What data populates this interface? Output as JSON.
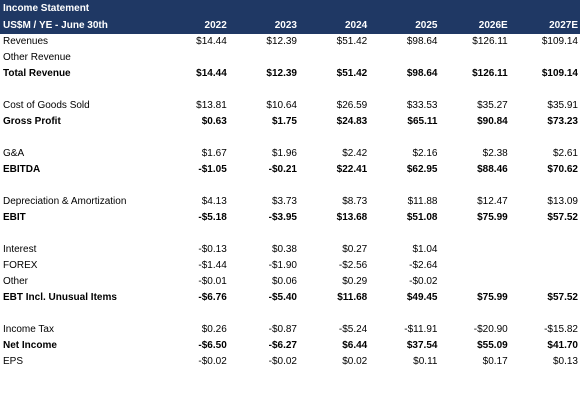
{
  "title": "Income Statement",
  "header": {
    "label": "US$M / YE - June 30th",
    "years": [
      "2022",
      "2023",
      "2024",
      "2025",
      "2026E",
      "2027E"
    ]
  },
  "rows": [
    {
      "type": "data",
      "label": "Revenues",
      "bold": false,
      "values": [
        "$14.44",
        "$12.39",
        "$51.42",
        "$98.64",
        "$126.11",
        "$109.14"
      ]
    },
    {
      "type": "data",
      "label": "Other Revenue",
      "bold": false,
      "values": [
        "",
        "",
        "",
        "",
        "",
        ""
      ]
    },
    {
      "type": "data",
      "label": "Total Revenue",
      "bold": true,
      "values": [
        "$14.44",
        "$12.39",
        "$51.42",
        "$98.64",
        "$126.11",
        "$109.14"
      ]
    },
    {
      "type": "spacer"
    },
    {
      "type": "data",
      "label": "Cost of Goods Sold",
      "bold": false,
      "values": [
        "$13.81",
        "$10.64",
        "$26.59",
        "$33.53",
        "$35.27",
        "$35.91"
      ]
    },
    {
      "type": "data",
      "label": "Gross Profit",
      "bold": true,
      "values": [
        "$0.63",
        "$1.75",
        "$24.83",
        "$65.11",
        "$90.84",
        "$73.23"
      ]
    },
    {
      "type": "spacer"
    },
    {
      "type": "data",
      "label": "G&A",
      "bold": false,
      "values": [
        "$1.67",
        "$1.96",
        "$2.42",
        "$2.16",
        "$2.38",
        "$2.61"
      ]
    },
    {
      "type": "data",
      "label": "EBITDA",
      "bold": true,
      "values": [
        "-$1.05",
        "-$0.21",
        "$22.41",
        "$62.95",
        "$88.46",
        "$70.62"
      ]
    },
    {
      "type": "spacer"
    },
    {
      "type": "data",
      "label": "Depreciation & Amortization",
      "bold": false,
      "values": [
        "$4.13",
        "$3.73",
        "$8.73",
        "$11.88",
        "$12.47",
        "$13.09"
      ]
    },
    {
      "type": "data",
      "label": "EBIT",
      "bold": true,
      "values": [
        "-$5.18",
        "-$3.95",
        "$13.68",
        "$51.08",
        "$75.99",
        "$57.52"
      ]
    },
    {
      "type": "spacer"
    },
    {
      "type": "data",
      "label": "Interest",
      "bold": false,
      "values": [
        "-$0.13",
        "$0.38",
        "$0.27",
        "$1.04",
        "",
        ""
      ]
    },
    {
      "type": "data",
      "label": "FOREX",
      "bold": false,
      "values": [
        "-$1.44",
        "-$1.90",
        "-$2.56",
        "-$2.64",
        "",
        ""
      ]
    },
    {
      "type": "data",
      "label": "Other",
      "bold": false,
      "values": [
        "-$0.01",
        "$0.06",
        "$0.29",
        "-$0.02",
        "",
        ""
      ]
    },
    {
      "type": "data",
      "label": "EBT Incl. Unusual Items",
      "bold": true,
      "values": [
        "-$6.76",
        "-$5.40",
        "$11.68",
        "$49.45",
        "$75.99",
        "$57.52"
      ]
    },
    {
      "type": "spacer"
    },
    {
      "type": "data",
      "label": "Income Tax",
      "bold": false,
      "values": [
        "$0.26",
        "-$0.87",
        "-$5.24",
        "-$11.91",
        "-$20.90",
        "-$15.82"
      ]
    },
    {
      "type": "data",
      "label": "Net Income",
      "bold": true,
      "values": [
        "-$6.50",
        "-$6.27",
        "$6.44",
        "$37.54",
        "$55.09",
        "$41.70"
      ]
    },
    {
      "type": "data",
      "label": "EPS",
      "bold": false,
      "values": [
        "-$0.02",
        "-$0.02",
        "$0.02",
        "$0.11",
        "$0.17",
        "$0.13"
      ]
    }
  ]
}
